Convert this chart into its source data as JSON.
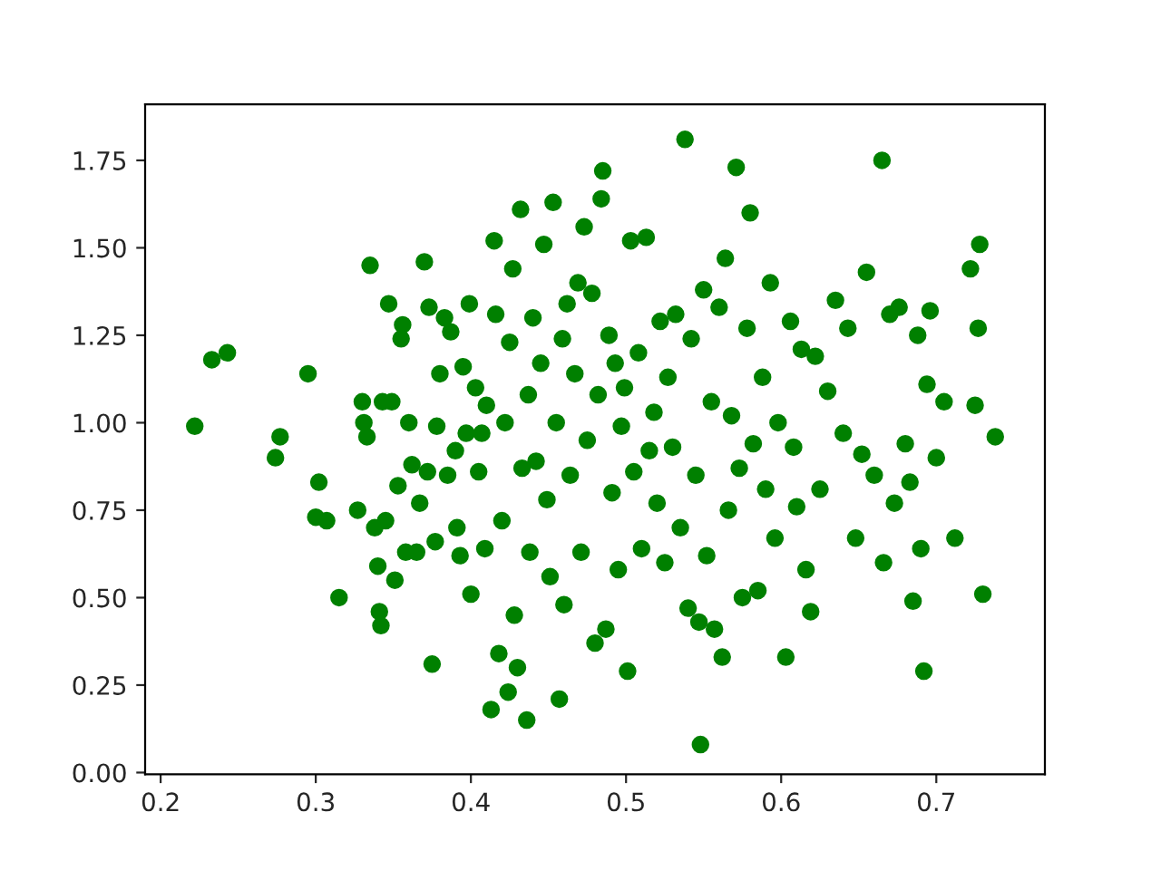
{
  "chart_data": {
    "type": "scatter",
    "marker": "circle",
    "grid": false,
    "legend": false,
    "xlim": [
      0.19,
      0.77
    ],
    "ylim": [
      -0.005,
      1.91
    ],
    "xticks": [
      0.2,
      0.3,
      0.4,
      0.5,
      0.6,
      0.7
    ],
    "yticks": [
      {
        "value": 0,
        "label": "0.00"
      },
      {
        "value": 0.25,
        "label": "0.25"
      },
      {
        "value": 0.5,
        "label": "0.50"
      },
      {
        "value": 0.75,
        "label": "0.75"
      },
      {
        "value": 1.0,
        "label": "1.00"
      },
      {
        "value": 1.25,
        "label": "1.25"
      },
      {
        "value": 1.5,
        "label": "1.50"
      },
      {
        "value": 1.75,
        "label": "1.75"
      }
    ],
    "series": [
      {
        "color": "#008000",
        "x": [
          0.222,
          0.233,
          0.243,
          0.277,
          0.274,
          0.295,
          0.3,
          0.302,
          0.307,
          0.315,
          0.327,
          0.33,
          0.331,
          0.333,
          0.335,
          0.338,
          0.34,
          0.341,
          0.342,
          0.343,
          0.345,
          0.347,
          0.349,
          0.351,
          0.353,
          0.355,
          0.356,
          0.358,
          0.36,
          0.362,
          0.365,
          0.367,
          0.37,
          0.372,
          0.373,
          0.375,
          0.377,
          0.378,
          0.38,
          0.383,
          0.385,
          0.387,
          0.39,
          0.391,
          0.393,
          0.395,
          0.397,
          0.399,
          0.4,
          0.403,
          0.405,
          0.407,
          0.409,
          0.41,
          0.413,
          0.415,
          0.416,
          0.418,
          0.42,
          0.422,
          0.424,
          0.425,
          0.427,
          0.428,
          0.43,
          0.432,
          0.433,
          0.436,
          0.437,
          0.438,
          0.44,
          0.442,
          0.445,
          0.447,
          0.449,
          0.451,
          0.453,
          0.455,
          0.457,
          0.459,
          0.46,
          0.462,
          0.464,
          0.467,
          0.469,
          0.471,
          0.473,
          0.475,
          0.478,
          0.48,
          0.482,
          0.484,
          0.485,
          0.487,
          0.489,
          0.491,
          0.493,
          0.495,
          0.497,
          0.499,
          0.501,
          0.503,
          0.505,
          0.508,
          0.51,
          0.513,
          0.515,
          0.518,
          0.52,
          0.522,
          0.525,
          0.527,
          0.53,
          0.532,
          0.535,
          0.538,
          0.54,
          0.542,
          0.545,
          0.547,
          0.548,
          0.55,
          0.552,
          0.555,
          0.557,
          0.56,
          0.562,
          0.564,
          0.566,
          0.568,
          0.571,
          0.573,
          0.575,
          0.578,
          0.58,
          0.582,
          0.585,
          0.588,
          0.59,
          0.593,
          0.596,
          0.598,
          0.603,
          0.606,
          0.608,
          0.61,
          0.613,
          0.616,
          0.619,
          0.622,
          0.625,
          0.63,
          0.635,
          0.64,
          0.643,
          0.648,
          0.652,
          0.655,
          0.66,
          0.665,
          0.666,
          0.67,
          0.673,
          0.676,
          0.68,
          0.683,
          0.685,
          0.688,
          0.69,
          0.692,
          0.694,
          0.696,
          0.7,
          0.705,
          0.712,
          0.722,
          0.725,
          0.727,
          0.728,
          0.73,
          0.738
        ],
        "values": [
          0.99,
          1.18,
          1.2,
          0.96,
          0.9,
          1.14,
          0.73,
          0.83,
          0.72,
          0.5,
          0.75,
          1.06,
          1.0,
          0.96,
          1.45,
          0.7,
          0.59,
          0.46,
          0.42,
          1.06,
          0.72,
          1.34,
          1.06,
          0.55,
          0.82,
          1.24,
          1.28,
          0.63,
          1.0,
          0.88,
          0.63,
          0.77,
          1.46,
          0.86,
          1.33,
          0.31,
          0.66,
          0.99,
          1.14,
          1.3,
          0.85,
          1.26,
          0.92,
          0.7,
          0.62,
          1.16,
          0.97,
          1.34,
          0.51,
          1.1,
          0.86,
          0.97,
          0.64,
          1.05,
          0.18,
          1.52,
          1.31,
          0.34,
          0.72,
          1.0,
          0.23,
          1.23,
          1.44,
          0.45,
          0.3,
          1.61,
          0.87,
          0.15,
          1.08,
          0.63,
          1.3,
          0.89,
          1.17,
          1.51,
          0.78,
          0.56,
          1.63,
          1.0,
          0.21,
          1.24,
          0.48,
          1.34,
          0.85,
          1.14,
          1.4,
          0.63,
          1.56,
          0.95,
          1.37,
          0.37,
          1.08,
          1.64,
          1.72,
          0.41,
          1.25,
          0.8,
          1.17,
          0.58,
          0.99,
          1.1,
          0.29,
          1.52,
          0.86,
          1.2,
          0.64,
          1.53,
          0.92,
          1.03,
          0.77,
          1.29,
          0.6,
          1.13,
          0.93,
          1.31,
          0.7,
          1.81,
          0.47,
          1.24,
          0.85,
          0.43,
          0.08,
          1.38,
          0.62,
          1.06,
          0.41,
          1.33,
          0.33,
          1.47,
          0.75,
          1.02,
          1.73,
          0.87,
          0.5,
          1.27,
          1.6,
          0.94,
          0.52,
          1.13,
          0.81,
          1.4,
          0.67,
          1.0,
          0.33,
          1.29,
          0.93,
          0.76,
          1.21,
          0.58,
          0.46,
          1.19,
          0.81,
          1.09,
          1.35,
          0.97,
          1.27,
          0.67,
          0.91,
          1.43,
          0.85,
          1.75,
          0.6,
          1.31,
          0.77,
          1.33,
          0.94,
          0.83,
          0.49,
          1.25,
          0.64,
          0.29,
          1.11,
          1.32,
          0.9,
          1.06,
          0.67,
          1.44,
          1.05,
          1.27,
          1.51,
          0.51,
          0.96
        ]
      }
    ]
  }
}
